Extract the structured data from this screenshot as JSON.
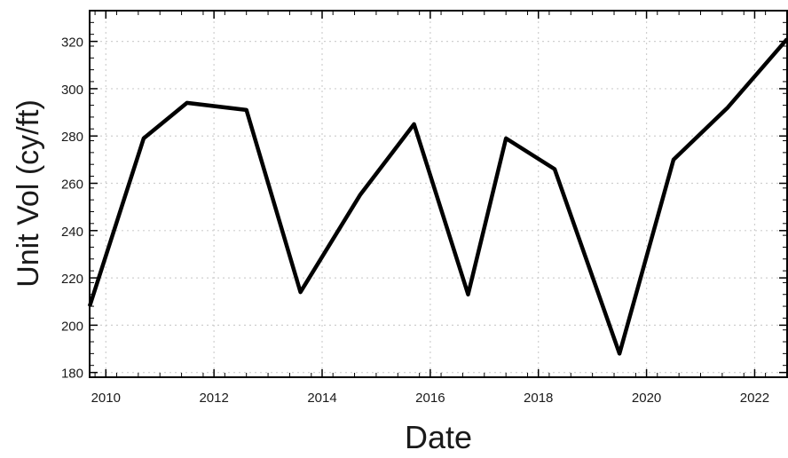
{
  "chart_data": {
    "type": "line",
    "title": "",
    "xlabel": "Date",
    "ylabel": "Unit Vol (cy/ft)",
    "x_tick_labels": [
      "2010",
      "2012",
      "2014",
      "2016",
      "2018",
      "2020",
      "2022"
    ],
    "y_tick_labels": [
      "180",
      "200",
      "220",
      "240",
      "260",
      "280",
      "300",
      "320"
    ],
    "x_ticks": [
      2010,
      2012,
      2014,
      2016,
      2018,
      2020,
      2022
    ],
    "y_ticks": [
      180,
      200,
      220,
      240,
      260,
      280,
      300,
      320
    ],
    "xlim": [
      2009.7,
      2022.6
    ],
    "ylim": [
      178,
      333
    ],
    "grid": true,
    "series": [
      {
        "color": "#000000",
        "x": [
          2009.7,
          2010.7,
          2011.5,
          2012.6,
          2013.6,
          2014.7,
          2015.7,
          2016.7,
          2017.4,
          2018.3,
          2019.5,
          2020.5,
          2021.5,
          2022.6
        ],
        "values": [
          208,
          279,
          294,
          291,
          214,
          255,
          285,
          213,
          279,
          266,
          188,
          270,
          292,
          321
        ]
      }
    ]
  }
}
